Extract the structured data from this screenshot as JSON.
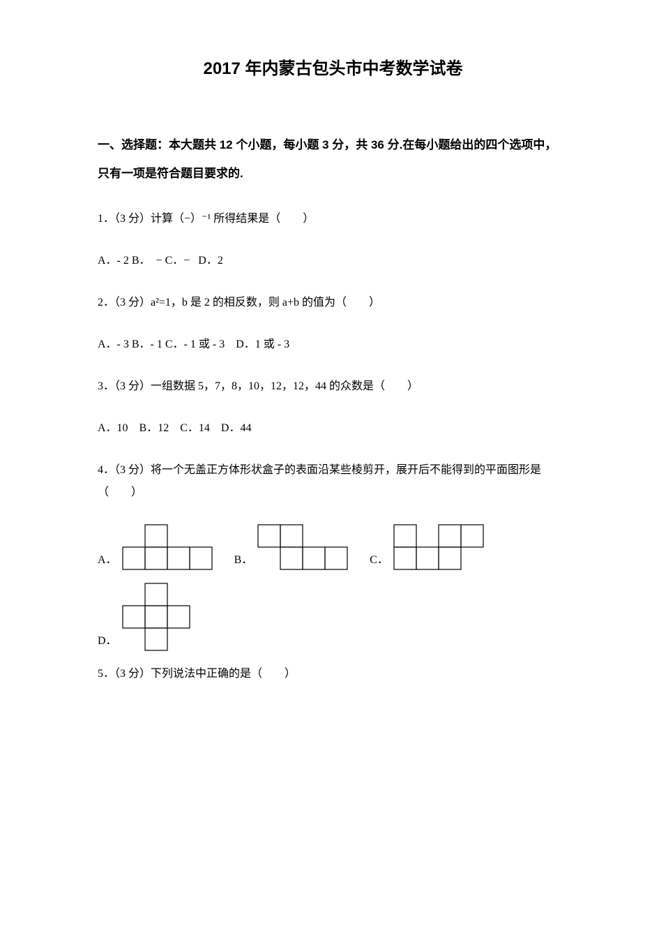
{
  "title": "2017 年内蒙古包头市中考数学试卷",
  "section1": {
    "header": "一、选择题：本大题共 12 个小题，每小题 3 分，共 36 分.在每小题给出的四个选项中，只有一项是符合题目要求的."
  },
  "q1": {
    "text": "1．（3 分）计算（−）⁻¹ 所得结果是（　　）",
    "options": "A．- 2  B． −  C．−  D．2"
  },
  "q2": {
    "text": "2．（3 分）a²=1，b 是 2 的相反数，则 a+b 的值为（　　）",
    "options": "A．- 3  B．- 1  C．- 1 或 - 3 D．1 或 - 3"
  },
  "q3": {
    "text": "3．（3 分）一组数据 5，7，8，10，12，12，44 的众数是（　　）",
    "options": "A．10 B．12 C．14 D．44"
  },
  "q4": {
    "text": "4．（3 分）将一个无盖正方体形状盒子的表面沿某些棱剪开，展开后不能得到的平面图形是（　　）",
    "labelA": "A．",
    "labelB": "B．",
    "labelC": "C．",
    "labelD": "D．"
  },
  "q5": {
    "text": "5．（3 分）下列说法中正确的是（　　）"
  },
  "figures": {
    "cell": 32,
    "stroke": "#000000",
    "strokeWidth": 1.2
  }
}
